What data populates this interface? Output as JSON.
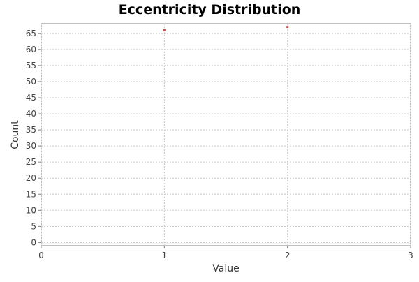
{
  "chart_data": {
    "type": "scatter",
    "title": "Eccentricity Distribution",
    "xlabel": "Value",
    "ylabel": "Count",
    "xlim": [
      0,
      3
    ],
    "ylim": [
      -1,
      68
    ],
    "x_ticks": [
      0,
      1,
      2,
      3
    ],
    "y_ticks": [
      0,
      5,
      10,
      15,
      20,
      25,
      30,
      35,
      40,
      45,
      50,
      55,
      60,
      65
    ],
    "grid": true,
    "legend": "none",
    "series": [
      {
        "color": "#c0504d",
        "points": [
          {
            "x": 1,
            "y": 66
          },
          {
            "x": 2,
            "y": 67
          }
        ]
      }
    ]
  }
}
